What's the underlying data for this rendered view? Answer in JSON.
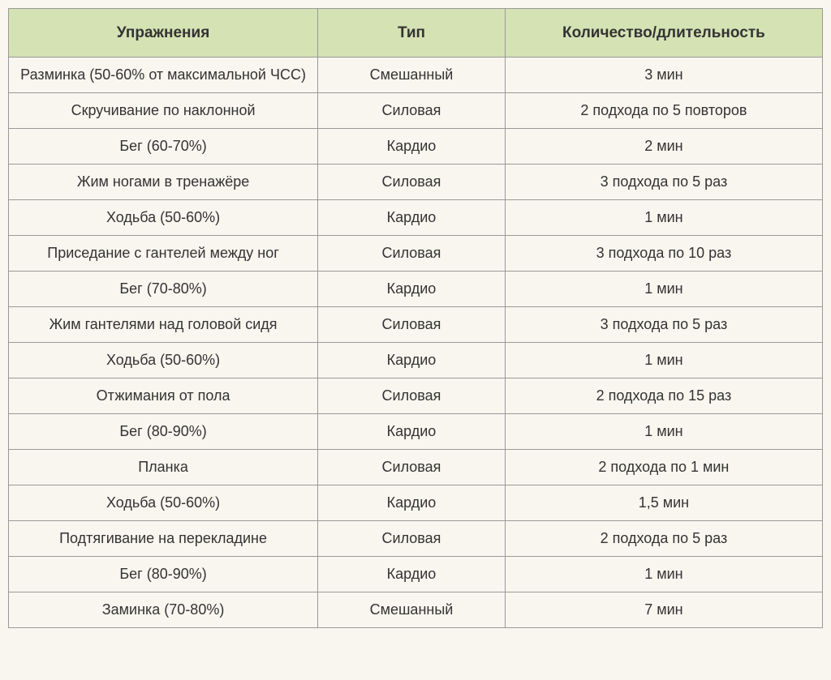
{
  "table": {
    "type": "table",
    "background_color": "#f9f6ef",
    "header_background_color": "#d5e2b4",
    "border_color": "#999999",
    "text_color": "#333333",
    "header_fontsize": 19,
    "body_fontsize": 18,
    "font_family": "Verdana",
    "column_widths_pct": [
      38,
      23,
      39
    ],
    "columns": [
      "Упражнения",
      "Тип",
      "Количество/длительность"
    ],
    "rows": [
      [
        "Разминка (50-60% от максимальной ЧСС)",
        "Смешанный",
        "3 мин"
      ],
      [
        "Скручивание по наклонной",
        "Силовая",
        "2 подхода по 5 повторов"
      ],
      [
        "Бег (60-70%)",
        "Кардио",
        "2 мин"
      ],
      [
        "Жим ногами в тренажёре",
        "Силовая",
        "3 подхода по 5 раз"
      ],
      [
        "Ходьба (50-60%)",
        "Кардио",
        "1 мин"
      ],
      [
        "Приседание с гантелей между ног",
        "Силовая",
        "3 подхода по 10 раз"
      ],
      [
        "Бег (70-80%)",
        "Кардио",
        "1 мин"
      ],
      [
        "Жим гантелями над головой сидя",
        "Силовая",
        "3 подхода по 5 раз"
      ],
      [
        "Ходьба (50-60%)",
        "Кардио",
        "1 мин"
      ],
      [
        "Отжимания от пола",
        "Силовая",
        "2 подхода по 15 раз"
      ],
      [
        "Бег (80-90%)",
        "Кардио",
        "1 мин"
      ],
      [
        "Планка",
        "Силовая",
        "2 подхода по 1 мин"
      ],
      [
        "Ходьба (50-60%)",
        "Кардио",
        "1,5 мин"
      ],
      [
        "Подтягивание на перекладине",
        "Силовая",
        "2 подхода по 5 раз"
      ],
      [
        "Бег (80-90%)",
        "Кардио",
        "1 мин"
      ],
      [
        "Заминка (70-80%)",
        "Смешанный",
        "7 мин"
      ]
    ]
  }
}
